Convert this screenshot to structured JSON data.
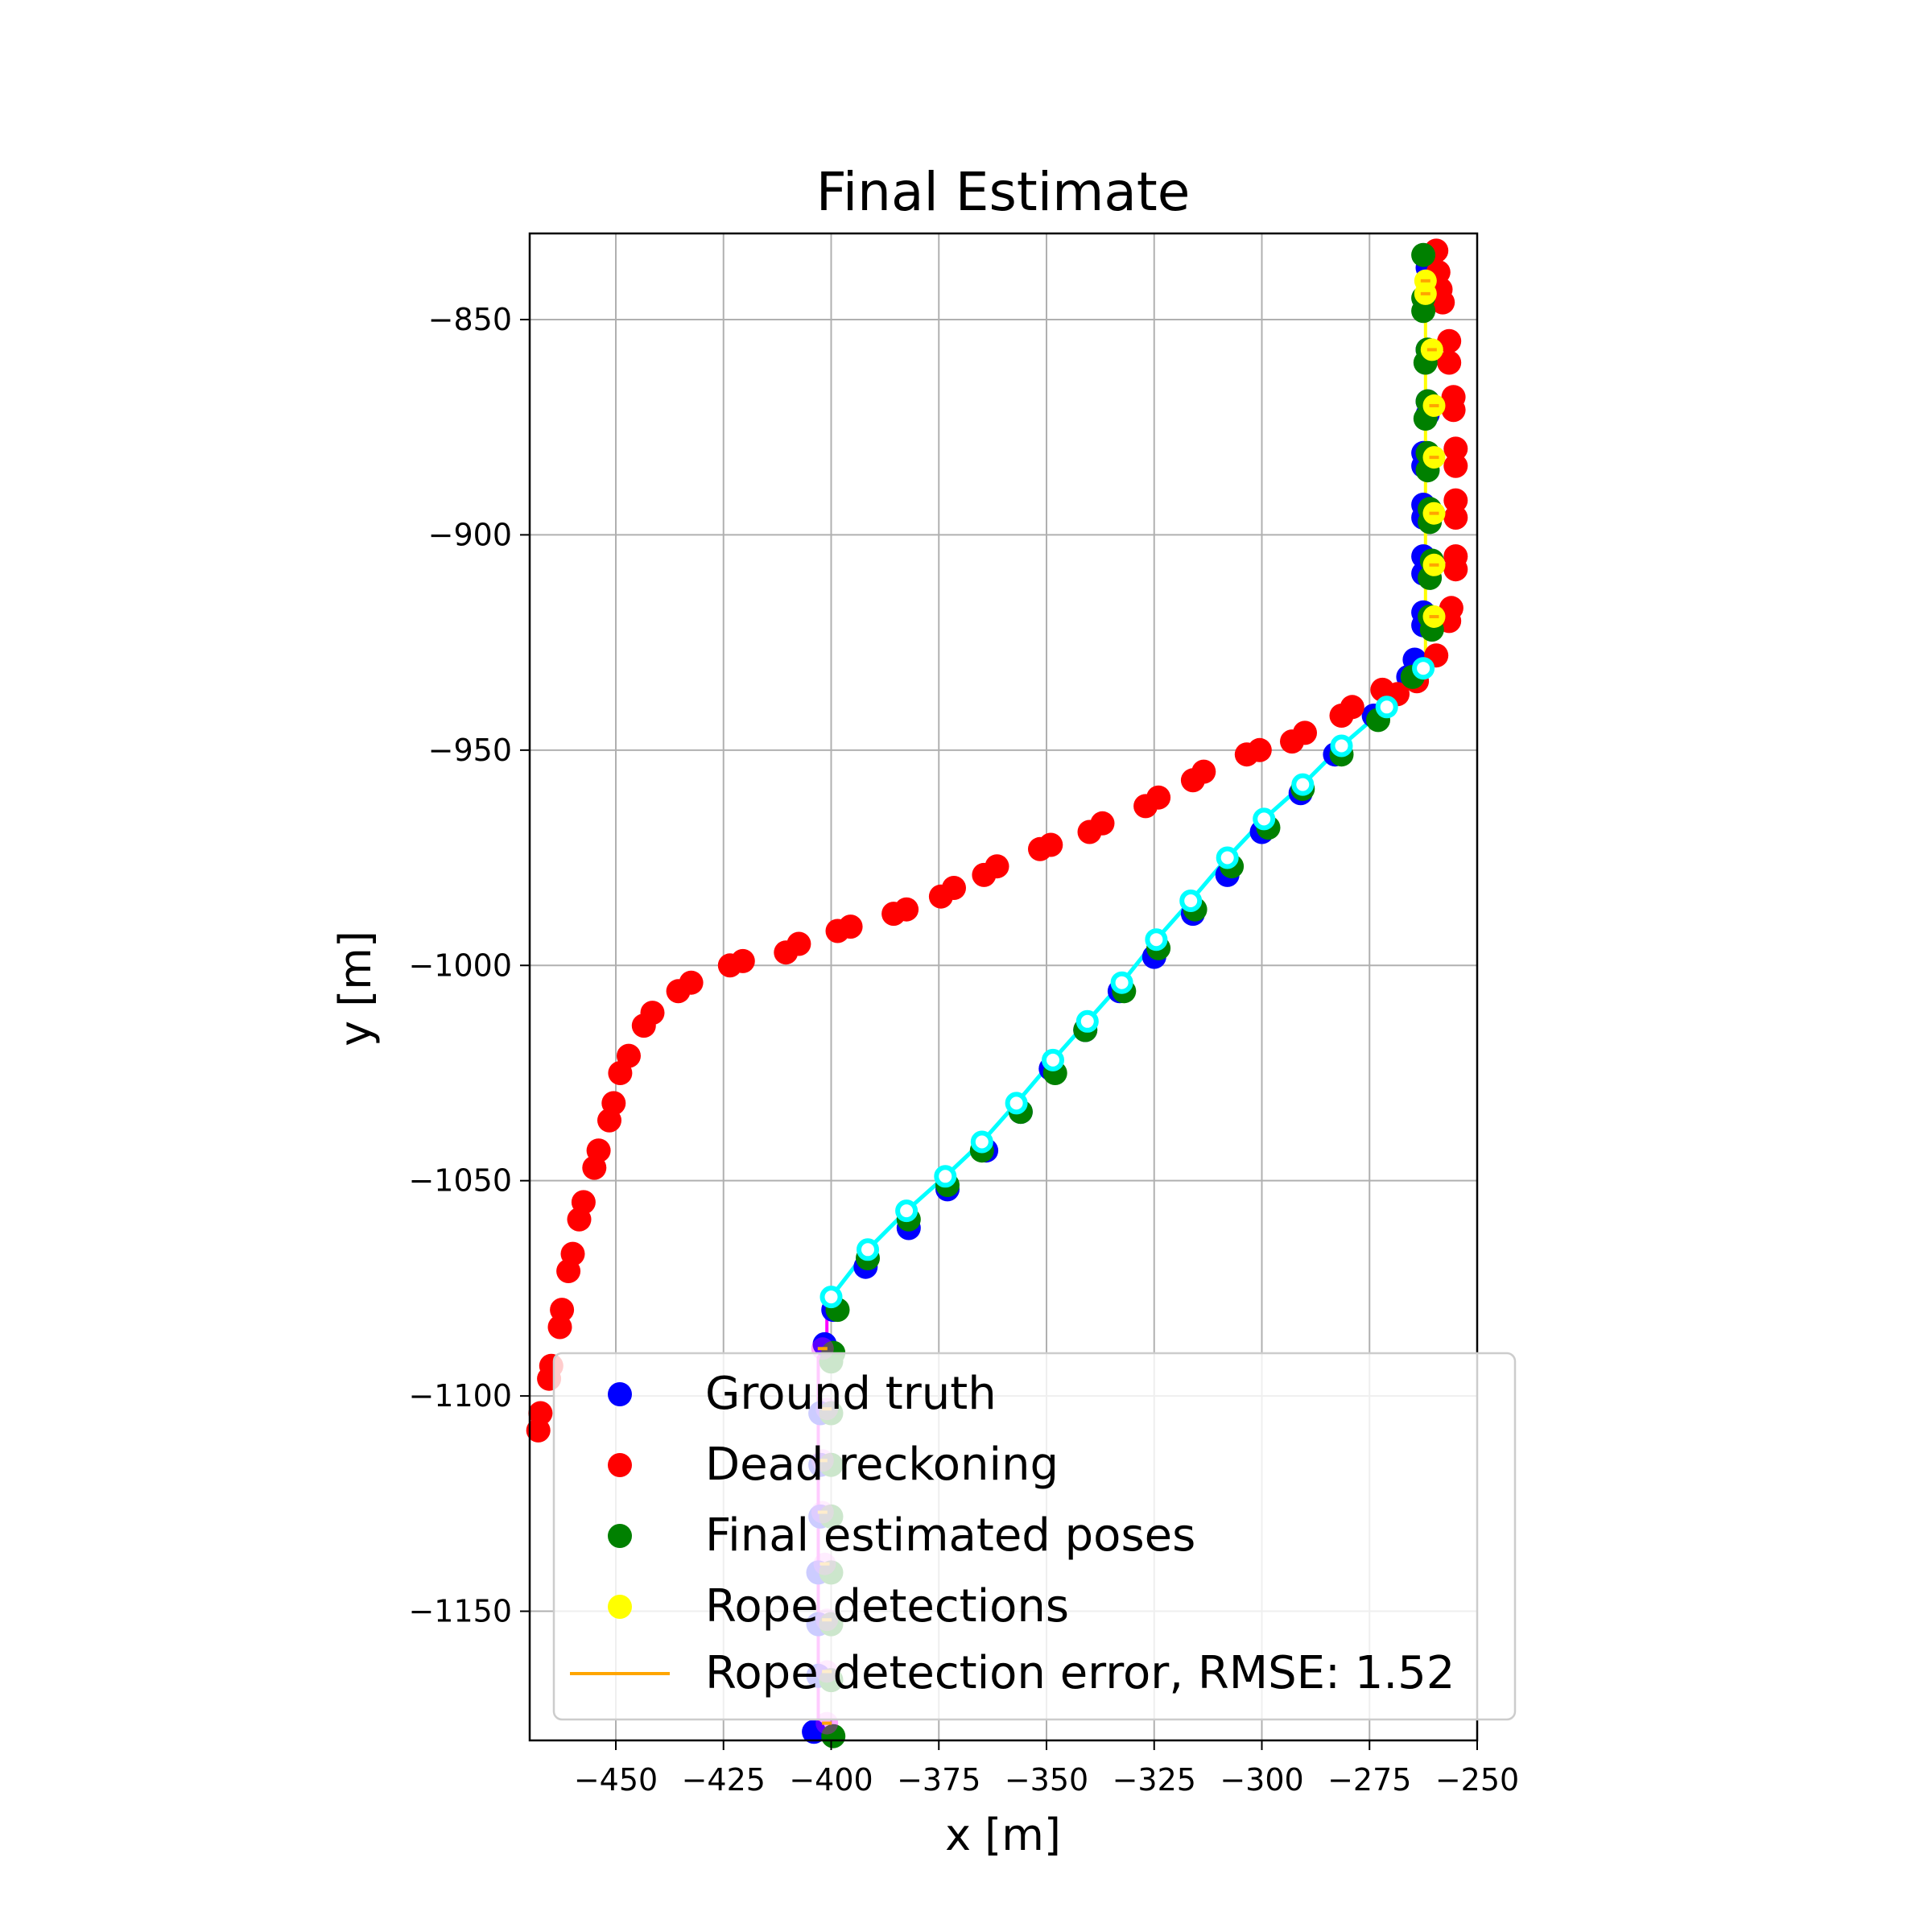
{
  "chart_data": {
    "type": "scatter",
    "title": "Final Estimate",
    "xlabel": "x [m]",
    "ylabel": "y [m]",
    "xlim": [
      -470,
      -250
    ],
    "ylim": [
      -1180,
      -830
    ],
    "xticks": [
      -450,
      -425,
      -400,
      -375,
      -350,
      -325,
      -300,
      -275,
      -250
    ],
    "yticks": [
      -850,
      -900,
      -950,
      -1000,
      -1050,
      -1100,
      -1150
    ],
    "xtick_labels": [
      "−450",
      "−425",
      "−400",
      "−375",
      "−350",
      "−325",
      "−300",
      "−275",
      "−250"
    ],
    "ytick_labels": [
      "−850",
      "−900",
      "−950",
      "−1000",
      "−1050",
      "−1100",
      "−1150"
    ],
    "grid": true,
    "legend_position": "lower-right",
    "colors": {
      "ground_truth": "#0000ff",
      "dead_reckoning": "#ff0000",
      "final_estimated": "#008000",
      "rope_detections": "#ffff00",
      "rope_error": "#ffa500",
      "rope_line_a": "#ffff00",
      "rope_line_b": "#ff00ff",
      "path_line": "#00ffff"
    },
    "series": [
      {
        "name": "Ground truth",
        "key": "ground_truth",
        "points": [
          [
            -261.5,
            -838
          ],
          [
            -261.5,
            -845
          ],
          [
            -261.5,
            -857
          ],
          [
            -261.5,
            -869
          ],
          [
            -261.5,
            -872
          ],
          [
            -262.5,
            -881
          ],
          [
            -262.5,
            -884
          ],
          [
            -262.5,
            -893
          ],
          [
            -262.5,
            -896
          ],
          [
            -262.5,
            -905
          ],
          [
            -262.5,
            -909
          ],
          [
            -262.5,
            -918
          ],
          [
            -262.5,
            -921
          ],
          [
            -264.5,
            -929
          ],
          [
            -266,
            -933
          ],
          [
            -274,
            -942
          ],
          [
            -283,
            -951
          ],
          [
            -291,
            -960
          ],
          [
            -300,
            -969
          ],
          [
            -308,
            -979
          ],
          [
            -316,
            -988
          ],
          [
            -325,
            -998
          ],
          [
            -333,
            -1006
          ],
          [
            -341,
            -1015
          ],
          [
            -349,
            -1024
          ],
          [
            -356,
            -1034
          ],
          [
            -364,
            -1043
          ],
          [
            -373,
            -1052
          ],
          [
            -382,
            -1061
          ],
          [
            -392,
            -1070
          ],
          [
            -399.5,
            -1080
          ],
          [
            -401.5,
            -1088
          ],
          [
            -402.5,
            -1104
          ],
          [
            -402.5,
            -1116
          ],
          [
            -402.5,
            -1128
          ],
          [
            -403,
            -1141
          ],
          [
            -403,
            -1153
          ],
          [
            -403,
            -1165
          ],
          [
            -404,
            -1178
          ]
        ]
      },
      {
        "name": "Dead reckoning",
        "key": "dead_reckoning",
        "points": [
          [
            -259.5,
            -834
          ],
          [
            -259,
            -839
          ],
          [
            -258.5,
            -843
          ],
          [
            -258,
            -846
          ],
          [
            -256.5,
            -855
          ],
          [
            -256.5,
            -860
          ],
          [
            -255.5,
            -868
          ],
          [
            -255.5,
            -871
          ],
          [
            -255,
            -880
          ],
          [
            -255,
            -884
          ],
          [
            -255,
            -892
          ],
          [
            -255,
            -896
          ],
          [
            -255,
            -905
          ],
          [
            -255,
            -908
          ],
          [
            -256,
            -917
          ],
          [
            -256.5,
            -920
          ],
          [
            -259.5,
            -928
          ],
          [
            -264,
            -934
          ],
          [
            -268.5,
            -937
          ],
          [
            -272,
            -936
          ],
          [
            -279,
            -940
          ],
          [
            -281.5,
            -942
          ],
          [
            -290,
            -946
          ],
          [
            -293,
            -948
          ],
          [
            -300.5,
            -950
          ],
          [
            -303.5,
            -951
          ],
          [
            -313.5,
            -955
          ],
          [
            -316,
            -957
          ],
          [
            -324,
            -961
          ],
          [
            -327,
            -963
          ],
          [
            -337,
            -967
          ],
          [
            -340,
            -969
          ],
          [
            -349,
            -972
          ],
          [
            -351.5,
            -973
          ],
          [
            -361.5,
            -977
          ],
          [
            -364.5,
            -979
          ],
          [
            -371.5,
            -982
          ],
          [
            -374.5,
            -984
          ],
          [
            -382.5,
            -987
          ],
          [
            -385.5,
            -988
          ],
          [
            -395.5,
            -991
          ],
          [
            -398.5,
            -992
          ],
          [
            -407.5,
            -995
          ],
          [
            -410.5,
            -997
          ],
          [
            -420.5,
            -999
          ],
          [
            -423.5,
            -1000
          ],
          [
            -432.5,
            -1004
          ],
          [
            -435.5,
            -1006
          ],
          [
            -441.5,
            -1011
          ],
          [
            -443.5,
            -1014
          ],
          [
            -447,
            -1021
          ],
          [
            -449,
            -1025
          ],
          [
            -450.5,
            -1032
          ],
          [
            -451.5,
            -1036
          ],
          [
            -454,
            -1043
          ],
          [
            -455,
            -1047
          ],
          [
            -457.5,
            -1055
          ],
          [
            -458.5,
            -1059
          ],
          [
            -460,
            -1067
          ],
          [
            -461,
            -1071
          ],
          [
            -462.5,
            -1080
          ],
          [
            -463,
            -1084
          ],
          [
            -465,
            -1093
          ],
          [
            -465.5,
            -1096
          ],
          [
            -467.5,
            -1104
          ],
          [
            -468,
            -1108
          ]
        ]
      },
      {
        "name": "Final estimated poses",
        "key": "final_estimated",
        "points": [
          [
            -262.5,
            -835
          ],
          [
            -262.5,
            -845
          ],
          [
            -262.5,
            -848
          ],
          [
            -261.5,
            -857
          ],
          [
            -262,
            -860
          ],
          [
            -261.5,
            -869
          ],
          [
            -262,
            -873
          ],
          [
            -261.5,
            -881
          ],
          [
            -261.5,
            -885
          ],
          [
            -261,
            -894
          ],
          [
            -261,
            -897
          ],
          [
            -260.5,
            -906
          ],
          [
            -261,
            -910
          ],
          [
            -261,
            -919
          ],
          [
            -260.5,
            -922
          ],
          [
            -265,
            -933
          ],
          [
            -273,
            -943
          ],
          [
            -281.5,
            -951
          ],
          [
            -290.5,
            -959
          ],
          [
            -298.5,
            -968
          ],
          [
            -307,
            -977
          ],
          [
            -315.5,
            -987
          ],
          [
            -324,
            -996
          ],
          [
            -332,
            -1006
          ],
          [
            -341,
            -1015
          ],
          [
            -348,
            -1025
          ],
          [
            -356,
            -1034
          ],
          [
            -365,
            -1043
          ],
          [
            -373,
            -1051
          ],
          [
            -382,
            -1059
          ],
          [
            -391.5,
            -1068
          ],
          [
            -398.5,
            -1080
          ],
          [
            -399.5,
            -1090
          ],
          [
            -400,
            -1092
          ],
          [
            -400,
            -1104
          ],
          [
            -400,
            -1116
          ],
          [
            -400,
            -1128
          ],
          [
            -400,
            -1141
          ],
          [
            -400,
            -1153
          ],
          [
            -400,
            -1166
          ],
          [
            -399.5,
            -1179
          ]
        ]
      },
      {
        "name": "Rope detections",
        "key": "rope_detections",
        "points": [
          [
            -262,
            -841
          ],
          [
            -262,
            -844
          ],
          [
            -260.5,
            -857
          ],
          [
            -260,
            -870
          ],
          [
            -260,
            -882
          ],
          [
            -260,
            -895
          ],
          [
            -260,
            -907
          ],
          [
            -260,
            -919
          ]
        ]
      },
      {
        "name": "Rope detection error, RMSE: 1.52",
        "key": "rope_error",
        "marker": "line"
      }
    ],
    "extra_lines": {
      "path_estimate": [
        [
          -262.5,
          -931
        ],
        [
          -271,
          -940
        ],
        [
          -281.5,
          -949
        ],
        [
          -290.5,
          -958
        ],
        [
          -299.5,
          -966
        ],
        [
          -308,
          -975
        ],
        [
          -316.5,
          -985
        ],
        [
          -324.5,
          -994
        ],
        [
          -332.5,
          -1004
        ],
        [
          -340.5,
          -1013
        ],
        [
          -348.5,
          -1022
        ],
        [
          -357,
          -1032
        ],
        [
          -365,
          -1041
        ],
        [
          -373.5,
          -1049
        ],
        [
          -382.5,
          -1057
        ],
        [
          -391.5,
          -1066
        ],
        [
          -400,
          -1077
        ]
      ],
      "rope_line_a": [
        [
          -260,
          -833
        ],
        [
          -260,
          -840
        ],
        [
          -262,
          -843
        ],
        [
          -262,
          -929
        ]
      ],
      "rope_line_b": [
        [
          -401,
          -1081
        ],
        [
          -401,
          -1089
        ],
        [
          -403,
          -1091
        ],
        [
          -403,
          -1178
        ]
      ],
      "rope_detections_lower": [
        [
          -402,
          -1089
        ],
        [
          -401,
          -1103
        ],
        [
          -402,
          -1115
        ],
        [
          -402,
          -1127
        ],
        [
          -401.5,
          -1139
        ],
        [
          -401,
          -1152
        ],
        [
          -401,
          -1164
        ],
        [
          -401,
          -1176
        ]
      ]
    }
  }
}
